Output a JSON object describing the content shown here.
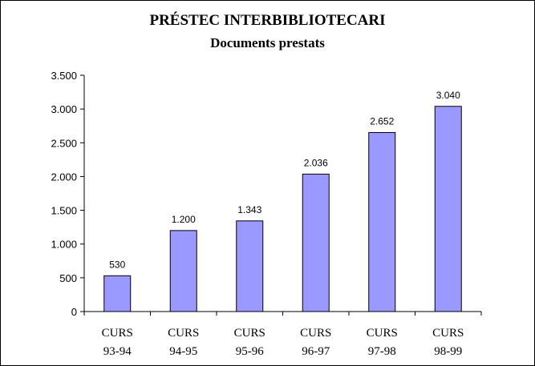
{
  "chart_data": {
    "type": "bar",
    "title": "PRÉSTEC INTERBIBLIOTECARI",
    "subtitle": "Documents prestats",
    "categories": [
      [
        "CURS",
        "93-94"
      ],
      [
        "CURS",
        "94-95"
      ],
      [
        "CURS",
        "95-96"
      ],
      [
        "CURS",
        "96-97"
      ],
      [
        "CURS",
        "97-98"
      ],
      [
        "CURS",
        "98-99"
      ]
    ],
    "values": [
      530,
      1200,
      1343,
      2036,
      2652,
      3040
    ],
    "data_labels": [
      "530",
      "1.200",
      "1.343",
      "2.036",
      "2.652",
      "3.040"
    ],
    "y_ticks": [
      0,
      500,
      1000,
      1500,
      2000,
      2500,
      3000,
      3500
    ],
    "y_tick_labels": [
      "0",
      "500",
      "1.000",
      "1.500",
      "2.000",
      "2.500",
      "3.000",
      "3.500"
    ],
    "ylim": [
      0,
      3500
    ],
    "grid": false,
    "legend": "none",
    "bar_color": "#9999ff",
    "bar_edge_color": "#000000"
  }
}
